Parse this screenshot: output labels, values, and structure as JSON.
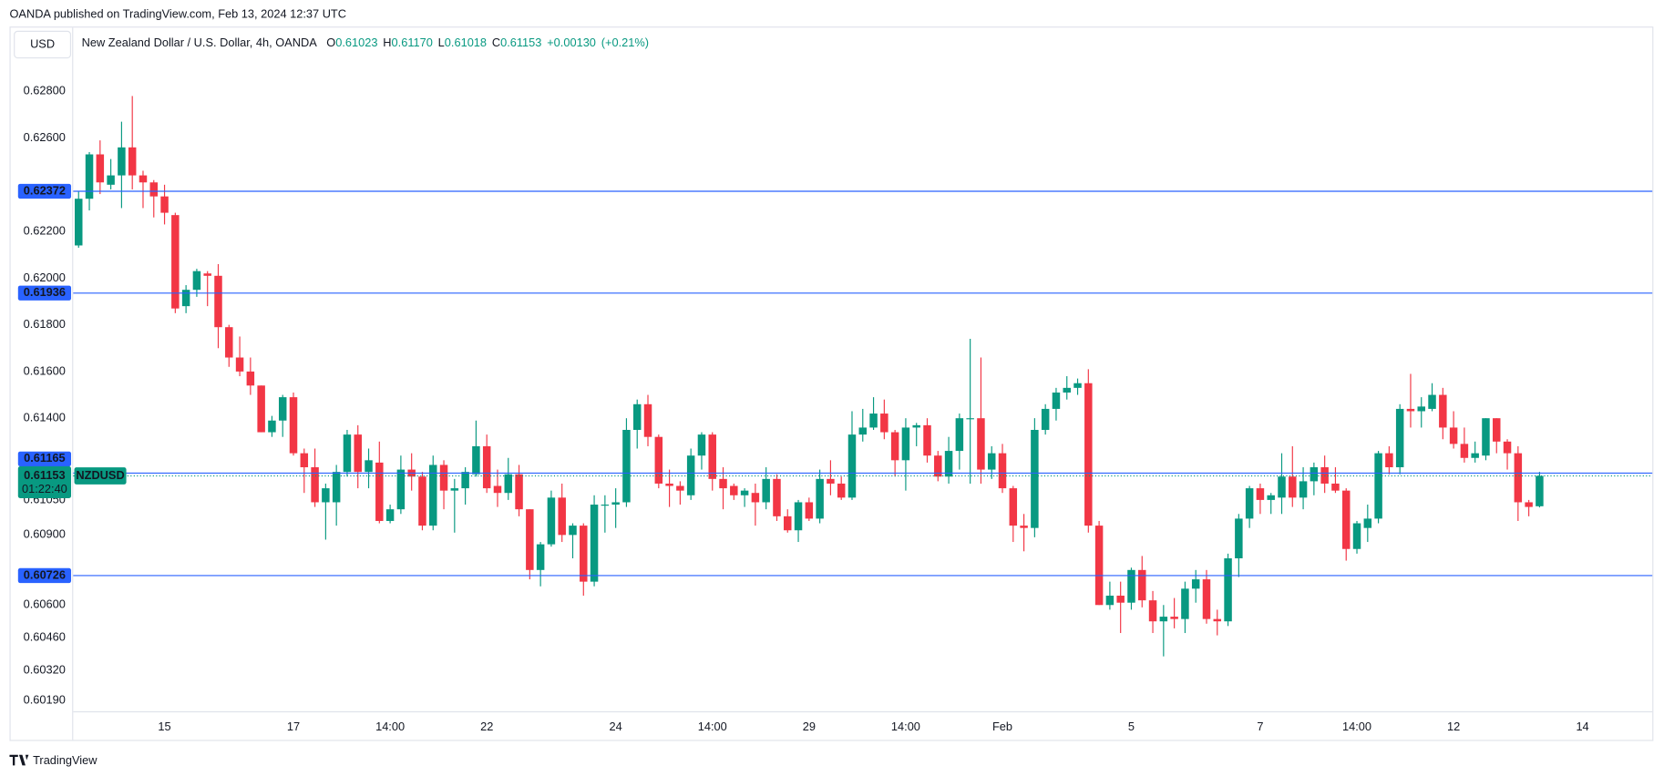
{
  "chart_data": {
    "type": "candlestick",
    "publisher": "OANDA published on TradingView.com, Feb 13, 2024 12:37 UTC",
    "currency": "USD",
    "title": "New Zealand Dollar / U.S. Dollar, 4h, OANDA",
    "ohlc": [
      {
        "key": "O",
        "value": "0.61023"
      },
      {
        "key": "H",
        "value": "0.61170"
      },
      {
        "key": "L",
        "value": "0.61018"
      },
      {
        "key": "C",
        "value": "0.61153"
      }
    ],
    "change": "+0.00130",
    "change_pct": "(+0.21%)",
    "footer": "TradingView",
    "up_color": "#089981",
    "down_color": "#f23645",
    "grid": false,
    "categories": [
      null,
      null,
      null,
      null,
      null,
      null,
      null,
      null,
      "15",
      null,
      null,
      null,
      null,
      null,
      null,
      null,
      null,
      null,
      null,
      null,
      "17",
      null,
      null,
      null,
      null,
      null,
      null,
      null,
      null,
      "14:00",
      null,
      null,
      null,
      null,
      null,
      null,
      null,
      null,
      "22",
      null,
      null,
      null,
      null,
      null,
      null,
      null,
      null,
      null,
      null,
      null,
      "24",
      null,
      null,
      null,
      null,
      null,
      null,
      null,
      null,
      "14:00",
      null,
      null,
      null,
      null,
      null,
      null,
      null,
      null,
      "29",
      null,
      null,
      null,
      null,
      null,
      null,
      null,
      null,
      "14:00",
      null,
      null,
      null,
      null,
      null,
      null,
      null,
      null,
      "Feb",
      null,
      null,
      null,
      null,
      null,
      null,
      null,
      null,
      null,
      null,
      null,
      "5",
      null,
      null,
      null,
      null,
      null,
      null,
      null,
      null,
      null,
      null,
      null,
      "7",
      null,
      null,
      null,
      null,
      null,
      null,
      null,
      null,
      "14:00",
      null,
      null,
      null,
      null,
      null,
      null,
      null,
      null,
      "12",
      null,
      null,
      null,
      null,
      null,
      null,
      null,
      null,
      null,
      null,
      null,
      "14",
      null,
      null,
      null,
      null,
      null,
      null
    ],
    "open": [
      0.6214,
      0.6234,
      0.6253,
      0.624,
      0.6244,
      0.6256,
      0.6244,
      0.6241,
      0.6235,
      0.6227,
      0.6188,
      0.6195,
      0.6202,
      0.6201,
      0.6179,
      0.6166,
      0.616,
      0.6154,
      0.6134,
      0.6139,
      0.6149,
      0.6125,
      0.6119,
      0.6104,
      0.6104,
      0.6117,
      0.6133,
      0.6117,
      0.6121,
      0.6096,
      0.6101,
      0.6118,
      0.6115,
      0.6094,
      0.612,
      0.6109,
      0.611,
      0.6116,
      0.6128,
      0.6111,
      0.6108,
      0.6116,
      0.6101,
      0.6075,
      0.6086,
      0.6106,
      0.609,
      0.6094,
      0.607,
      0.6103,
      0.6103,
      0.6104,
      0.6135,
      0.6146,
      0.6132,
      0.6112,
      0.6111,
      0.6107,
      0.6124,
      0.6133,
      0.6114,
      0.6111,
      0.6107,
      0.6108,
      0.6104,
      0.6114,
      0.6098,
      0.6092,
      0.6104,
      0.6097,
      0.6114,
      0.6112,
      0.6106,
      0.6133,
      0.6136,
      0.6142,
      0.6134,
      0.6122,
      0.6136,
      0.6137,
      0.6124,
      0.6115,
      0.6126,
      0.614,
      0.614,
      0.6118,
      0.6125,
      0.611,
      0.6094,
      0.6093,
      0.6135,
      0.6144,
      0.6151,
      0.6153,
      0.6155,
      0.6094,
      0.606,
      0.6064,
      0.6061,
      0.6075,
      0.6062,
      0.6053,
      0.6055,
      0.6054,
      0.6067,
      0.6071,
      0.6054,
      0.6053,
      0.608,
      0.6097,
      0.611,
      0.6105,
      0.6106,
      0.6115,
      0.6106,
      0.6113,
      0.6119,
      0.6112,
      0.6109,
      0.6084,
      0.6093,
      0.6097,
      0.6125,
      0.6119,
      0.6144,
      0.6143,
      0.6144,
      0.615,
      0.6136,
      0.6129,
      0.6123,
      0.6124,
      0.614,
      0.613,
      0.6125,
      0.6104,
      0.61023,
      null,
      null,
      null,
      null,
      null,
      null,
      null,
      null,
      null,
      null
    ],
    "high": [
      0.6237,
      0.6254,
      0.6259,
      0.6251,
      0.6267,
      0.6278,
      0.6246,
      0.6242,
      0.624,
      0.6228,
      0.6197,
      0.6204,
      0.6203,
      0.6206,
      0.618,
      0.6175,
      0.6166,
      0.6154,
      0.6141,
      0.615,
      0.6151,
      0.6127,
      0.6127,
      0.6112,
      0.612,
      0.6135,
      0.6137,
      0.6127,
      0.613,
      0.6103,
      0.6124,
      0.6125,
      0.6117,
      0.6124,
      0.6122,
      0.6114,
      0.6119,
      0.6139,
      0.6133,
      0.6118,
      0.6123,
      0.612,
      0.6101,
      0.6087,
      0.6109,
      0.6112,
      0.6095,
      0.6095,
      0.6107,
      0.6107,
      0.611,
      0.614,
      0.6148,
      0.615,
      0.6133,
      0.6118,
      0.6113,
      0.6127,
      0.6134,
      0.6134,
      0.6119,
      0.6112,
      0.611,
      0.6112,
      0.6119,
      0.6116,
      0.6101,
      0.6105,
      0.6106,
      0.6118,
      0.6122,
      0.6115,
      0.6143,
      0.6144,
      0.6149,
      0.6148,
      0.6135,
      0.614,
      0.6138,
      0.614,
      0.6126,
      0.6132,
      0.6142,
      0.6174,
      0.6166,
      0.6128,
      0.6129,
      0.6111,
      0.6099,
      0.614,
      0.6146,
      0.6153,
      0.6158,
      0.6157,
      0.6161,
      0.6096,
      0.607,
      0.607,
      0.6076,
      0.6081,
      0.6066,
      0.606,
      0.6063,
      0.607,
      0.6075,
      0.6075,
      0.6058,
      0.6082,
      0.6099,
      0.6111,
      0.6112,
      0.6108,
      0.6125,
      0.6128,
      0.6119,
      0.6121,
      0.6124,
      0.6119,
      0.611,
      0.6096,
      0.6103,
      0.6126,
      0.6128,
      0.6146,
      0.6159,
      0.6149,
      0.6155,
      0.6153,
      0.6143,
      0.6136,
      0.613,
      0.614,
      0.614,
      0.6131,
      0.6128,
      0.6105,
      0.6117,
      null,
      null,
      null,
      null,
      null,
      null,
      null,
      null,
      null,
      null
    ],
    "low": [
      0.6213,
      0.6229,
      0.6236,
      0.6238,
      0.623,
      0.6238,
      0.623,
      0.6226,
      0.6223,
      0.6185,
      0.6185,
      0.6192,
      0.6188,
      0.617,
      0.6162,
      0.6158,
      0.615,
      0.6134,
      0.6132,
      0.6132,
      0.6124,
      0.6108,
      0.6102,
      0.6088,
      0.6094,
      0.6115,
      0.611,
      0.611,
      0.6095,
      0.6095,
      0.6099,
      0.6109,
      0.6092,
      0.6092,
      0.6101,
      0.6091,
      0.6103,
      0.6115,
      0.6108,
      0.6102,
      0.6105,
      0.6098,
      0.6071,
      0.6068,
      0.6085,
      0.6087,
      0.608,
      0.6064,
      0.6068,
      0.6091,
      0.6093,
      0.6102,
      0.6127,
      0.6128,
      0.611,
      0.6102,
      0.6103,
      0.6105,
      0.6118,
      0.6109,
      0.6101,
      0.6105,
      0.6102,
      0.6094,
      0.6101,
      0.6096,
      0.6091,
      0.6087,
      0.6096,
      0.6095,
      0.6107,
      0.6105,
      0.6105,
      0.613,
      0.6135,
      0.6131,
      0.6115,
      0.6109,
      0.6128,
      0.6121,
      0.6113,
      0.6112,
      0.6118,
      0.6112,
      0.6112,
      0.6114,
      0.6108,
      0.6087,
      0.6083,
      0.6089,
      0.6133,
      0.6139,
      0.6148,
      0.615,
      0.6091,
      0.606,
      0.6058,
      0.6048,
      0.6058,
      0.6059,
      0.6048,
      0.6038,
      0.605,
      0.6048,
      0.6061,
      0.6052,
      0.6047,
      0.6051,
      0.6072,
      0.6093,
      0.6099,
      0.6099,
      0.6099,
      0.6102,
      0.6101,
      0.6107,
      0.6108,
      0.6108,
      0.6079,
      0.6082,
      0.6087,
      0.6095,
      0.6116,
      0.6116,
      0.6136,
      0.6136,
      0.6143,
      0.6131,
      0.6127,
      0.6121,
      0.6121,
      0.6122,
      0.6125,
      0.6118,
      0.6096,
      0.6098,
      0.61018,
      null,
      null,
      null,
      null,
      null,
      null,
      null,
      null,
      null,
      null
    ],
    "close": [
      0.6234,
      0.6253,
      0.6241,
      0.6244,
      0.6256,
      0.6244,
      0.6241,
      0.6235,
      0.6228,
      0.6187,
      0.6195,
      0.6203,
      0.6201,
      0.6179,
      0.6166,
      0.616,
      0.6154,
      0.6134,
      0.6139,
      0.6149,
      0.6125,
      0.6119,
      0.6104,
      0.611,
      0.6117,
      0.6133,
      0.6117,
      0.6122,
      0.6096,
      0.6101,
      0.6118,
      0.6115,
      0.6094,
      0.612,
      0.6109,
      0.611,
      0.6117,
      0.6128,
      0.611,
      0.6108,
      0.6116,
      0.6101,
      0.6075,
      0.6086,
      0.6106,
      0.609,
      0.6094,
      0.607,
      0.6103,
      0.6103,
      0.6104,
      0.6135,
      0.6146,
      0.6132,
      0.6112,
      0.6111,
      0.6109,
      0.6124,
      0.6133,
      0.6114,
      0.611,
      0.6107,
      0.6109,
      0.6104,
      0.6114,
      0.6098,
      0.6092,
      0.6104,
      0.6097,
      0.6114,
      0.6112,
      0.6106,
      0.6133,
      0.6136,
      0.6142,
      0.6134,
      0.6122,
      0.6136,
      0.6137,
      0.6124,
      0.6115,
      0.6126,
      0.614,
      0.614,
      0.6118,
      0.6125,
      0.611,
      0.6094,
      0.6093,
      0.6135,
      0.6144,
      0.6151,
      0.6153,
      0.6155,
      0.6094,
      0.606,
      0.6064,
      0.6061,
      0.6075,
      0.6062,
      0.6053,
      0.6055,
      0.6054,
      0.6067,
      0.6071,
      0.6054,
      0.6053,
      0.608,
      0.6097,
      0.611,
      0.6105,
      0.6107,
      0.6115,
      0.6106,
      0.6113,
      0.6119,
      0.6112,
      0.6109,
      0.6084,
      0.6095,
      0.6097,
      0.6125,
      0.6119,
      0.6144,
      0.6143,
      0.6145,
      0.615,
      0.6136,
      0.6129,
      0.6123,
      0.6125,
      0.614,
      0.613,
      0.6125,
      0.6104,
      0.6102,
      0.61153,
      null,
      null,
      null,
      null,
      null,
      null,
      null,
      null,
      null,
      null
    ],
    "ylim": [
      0.60145,
      0.63073
    ],
    "yticks": [
      {
        "value": 0.628,
        "label": "0.62800"
      },
      {
        "value": 0.626,
        "label": "0.62600"
      },
      {
        "value": 0.622,
        "label": "0.62200"
      },
      {
        "value": 0.62,
        "label": "0.62000"
      },
      {
        "value": 0.618,
        "label": "0.61800"
      },
      {
        "value": 0.616,
        "label": "0.61600"
      },
      {
        "value": 0.614,
        "label": "0.61400"
      },
      {
        "value": 0.6105,
        "label": "0.61050"
      },
      {
        "value": 0.609,
        "label": "0.60900"
      },
      {
        "value": 0.606,
        "label": "0.60600"
      },
      {
        "value": 0.6046,
        "label": "0.60460"
      },
      {
        "value": 0.6032,
        "label": "0.60320"
      },
      {
        "value": 0.6019,
        "label": "0.60190"
      }
    ],
    "price_line_color": "#2962ff",
    "price_lines": [
      {
        "value": 0.62372,
        "label": "0.62372"
      },
      {
        "value": 0.61936,
        "label": "0.61936"
      },
      {
        "value": 0.61165,
        "label": "0.61165"
      },
      {
        "value": 0.60726,
        "label": "0.60726"
      }
    ],
    "last_price": {
      "value": 0.61153,
      "label": "0.61153",
      "symbol": "NZDUSD",
      "countdown": "01:22:40",
      "color": "#089981"
    }
  }
}
